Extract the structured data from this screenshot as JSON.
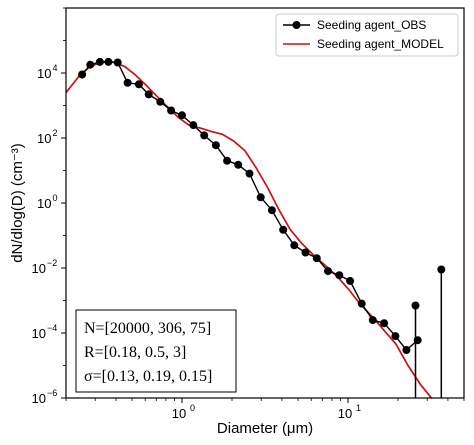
{
  "chart_data": {
    "type": "line",
    "xlabel": "Diameter (μm)",
    "ylabel": "dN/dlog(D) (cm⁻³)",
    "xscale": "log",
    "yscale": "log",
    "xlim": [
      0.2,
      50
    ],
    "ylim": [
      1e-06,
      1000000.0
    ],
    "x_ticks": [
      {
        "value": 1,
        "base": "10",
        "exp": "0"
      },
      {
        "value": 10,
        "base": "10",
        "exp": "1"
      }
    ],
    "y_ticks": [
      {
        "value": 1e-06,
        "base": "10",
        "exp": "−6"
      },
      {
        "value": 0.0001,
        "base": "10",
        "exp": "−4"
      },
      {
        "value": 0.01,
        "base": "10",
        "exp": "−2"
      },
      {
        "value": 1,
        "base": "10",
        "exp": "0"
      },
      {
        "value": 100.0,
        "base": "10",
        "exp": "2"
      },
      {
        "value": 10000.0,
        "base": "10",
        "exp": "4"
      }
    ],
    "grid": false,
    "legend_position": "top-right",
    "series": [
      {
        "name": "Seeding agent_OBS",
        "color": "#000000",
        "marker": "circle",
        "stem_points": [
          [
            25.5,
            0.0007
          ],
          [
            36.5,
            0.009
          ]
        ],
        "x": [
          0.25,
          0.28,
          0.32,
          0.36,
          0.41,
          0.47,
          0.55,
          0.63,
          0.74,
          0.86,
          1.0,
          1.17,
          1.36,
          1.6,
          1.87,
          2.18,
          2.55,
          2.98,
          3.48,
          4.07,
          4.75,
          5.55,
          6.49,
          7.58,
          8.86,
          10.3,
          12.1,
          14.1,
          16.5,
          19.3,
          22.5,
          26.3
        ],
        "y": [
          9000,
          18000,
          22000,
          22000,
          21000,
          5000,
          4500,
          2200,
          1300,
          700,
          500,
          250,
          120,
          60,
          20,
          15,
          8,
          1.5,
          0.6,
          0.15,
          0.05,
          0.03,
          0.02,
          0.008,
          0.006,
          0.004,
          0.0008,
          0.00025,
          0.0002,
          8e-05,
          3e-05,
          6e-05
        ]
      },
      {
        "name": "Seeding agent_MODEL",
        "color": "#cc1111",
        "x": [
          0.2,
          0.24,
          0.28,
          0.33,
          0.38,
          0.45,
          0.52,
          0.6,
          0.7,
          0.82,
          0.95,
          1.1,
          1.3,
          1.5,
          1.75,
          2.05,
          2.4,
          2.8,
          3.3,
          3.85,
          4.5,
          5.3,
          6.2,
          7.3,
          8.6,
          10.1,
          11.9,
          14,
          16.5,
          19.5,
          23,
          27.5,
          33,
          38
        ],
        "y": [
          2500,
          8000,
          16000,
          22000,
          22000,
          16000,
          9000,
          4500,
          2000,
          900,
          430,
          250,
          200,
          160,
          130,
          80,
          40,
          12,
          2.8,
          0.6,
          0.15,
          0.055,
          0.025,
          0.012,
          0.0055,
          0.0022,
          0.00075,
          0.00032,
          0.00012,
          4.5e-05,
          1e-05,
          2.5e-06,
          8e-07,
          4e-07
        ]
      }
    ],
    "legend": [
      "Seeding agent_OBS",
      "Seeding agent_MODEL"
    ],
    "annotation_lines": [
      "N=[20000, 306, 75]",
      "R=[0.18, 0.5, 3]",
      "σ=[0.13, 0.19, 0.15]"
    ]
  }
}
